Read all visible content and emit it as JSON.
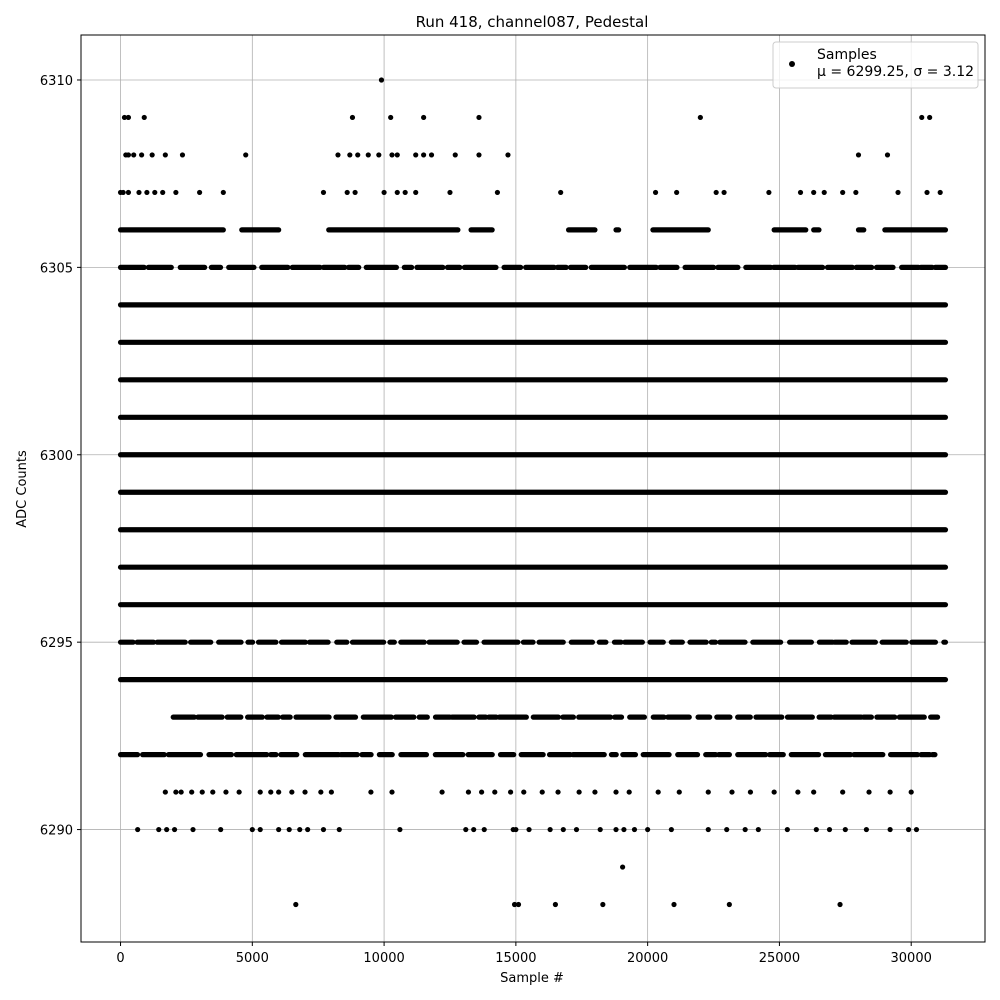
{
  "chart_data": {
    "type": "scatter",
    "title": "Run 418, channel087, Pedestal",
    "xlabel": "Sample #",
    "ylabel": "ADC Counts",
    "xlim": [
      -1500,
      32800
    ],
    "ylim": [
      6287,
      6311.2
    ],
    "xticks": [
      0,
      5000,
      10000,
      15000,
      20000,
      25000,
      30000
    ],
    "yticks": [
      6290,
      6295,
      6300,
      6305,
      6310
    ],
    "grid": true,
    "legend": {
      "placement": "top-right",
      "series_name": "Samples",
      "stats_text": "μ = 6299.25, σ = 3.12",
      "mu": 6299.25,
      "sigma": 3.12
    },
    "marker_color": "#000000",
    "sample_count": 31400,
    "levels": [
      {
        "y": 6310,
        "x": [
          9900
        ]
      },
      {
        "y": 6309,
        "x": [
          150,
          300,
          900,
          8800,
          10250,
          11500,
          13600,
          22000,
          30400,
          30700
        ]
      },
      {
        "y": 6308,
        "x": [
          200,
          300,
          500,
          800,
          1200,
          1700,
          2350,
          4750,
          8250,
          8700,
          9000,
          9400,
          9800,
          10300,
          10500,
          11200,
          11500,
          11800,
          12700,
          13600,
          14700,
          28000,
          29100
        ]
      },
      {
        "y": 6307,
        "x": [
          0,
          100,
          300,
          700,
          1000,
          1300,
          1600,
          2100,
          3000,
          3900,
          7700,
          8600,
          8900,
          10000,
          10500,
          10800,
          11200,
          12500,
          14300,
          16700,
          20300,
          21100,
          22600,
          22900,
          24600,
          25800,
          26300,
          26700,
          27400,
          27900,
          29500,
          30600,
          31100
        ]
      },
      {
        "y": 6306,
        "x_ranges": [
          [
            0,
            3900
          ],
          [
            4600,
            6000
          ],
          [
            7900,
            12800
          ],
          [
            13300,
            14100
          ],
          [
            17000,
            18000
          ],
          [
            18800,
            18900
          ],
          [
            20200,
            22300
          ],
          [
            24800,
            26000
          ],
          [
            26300,
            26500
          ],
          [
            28000,
            28200
          ],
          [
            29000,
            31300
          ]
        ]
      },
      {
        "y": 6305,
        "x_ranges": [
          [
            0,
            31300
          ]
        ],
        "sparse": true
      },
      {
        "y": 6304,
        "x_ranges": [
          [
            0,
            31300
          ]
        ]
      },
      {
        "y": 6303,
        "x_ranges": [
          [
            0,
            31300
          ]
        ]
      },
      {
        "y": 6302,
        "x_ranges": [
          [
            0,
            31300
          ]
        ]
      },
      {
        "y": 6301,
        "x_ranges": [
          [
            0,
            31300
          ]
        ]
      },
      {
        "y": 6300,
        "x_ranges": [
          [
            0,
            31300
          ]
        ]
      },
      {
        "y": 6299,
        "x_ranges": [
          [
            0,
            31300
          ]
        ]
      },
      {
        "y": 6298,
        "x_ranges": [
          [
            0,
            31300
          ]
        ]
      },
      {
        "y": 6297,
        "x_ranges": [
          [
            0,
            31300
          ]
        ]
      },
      {
        "y": 6296,
        "x_ranges": [
          [
            0,
            31300
          ]
        ]
      },
      {
        "y": 6295,
        "x_ranges": [
          [
            0,
            31300
          ]
        ],
        "sparse": true
      },
      {
        "y": 6294,
        "x_ranges": [
          [
            0,
            31300
          ]
        ]
      },
      {
        "y": 6293,
        "x_ranges": [
          [
            2000,
            31000
          ]
        ],
        "sparse": true
      },
      {
        "y": 6292,
        "x_ranges": [
          [
            0,
            30900
          ]
        ],
        "sparse": true
      },
      {
        "y": 6291,
        "x": [
          1700,
          2100,
          2300,
          2700,
          3100,
          3500,
          4000,
          4500,
          5300,
          5700,
          6000,
          6500,
          7000,
          7600,
          8000,
          9500,
          10300,
          12200,
          13200,
          13700,
          14200,
          14800,
          15300,
          16000,
          16600,
          17400,
          18000,
          18800,
          19300,
          20400,
          21200,
          22300,
          23200,
          23900,
          24800,
          25700,
          26300,
          27400,
          28400,
          29200,
          30000
        ]
      },
      {
        "y": 6290,
        "x": [
          650,
          1450,
          1750,
          2050,
          2750,
          3800,
          5000,
          5300,
          6000,
          6400,
          6800,
          7100,
          7700,
          8300,
          10600,
          13100,
          13400,
          13800,
          14900,
          15000,
          15500,
          16300,
          16800,
          17300,
          18200,
          18800,
          19100,
          19500,
          20000,
          20900,
          22300,
          23000,
          23700,
          24200,
          25300,
          26400,
          26900,
          27500,
          28300,
          29200,
          29900,
          30200
        ]
      },
      {
        "y": 6289,
        "x": [
          19050
        ]
      },
      {
        "y": 6288,
        "x": [
          6650,
          14950,
          15100,
          16500,
          18300,
          21000,
          23100,
          27300
        ]
      }
    ]
  }
}
